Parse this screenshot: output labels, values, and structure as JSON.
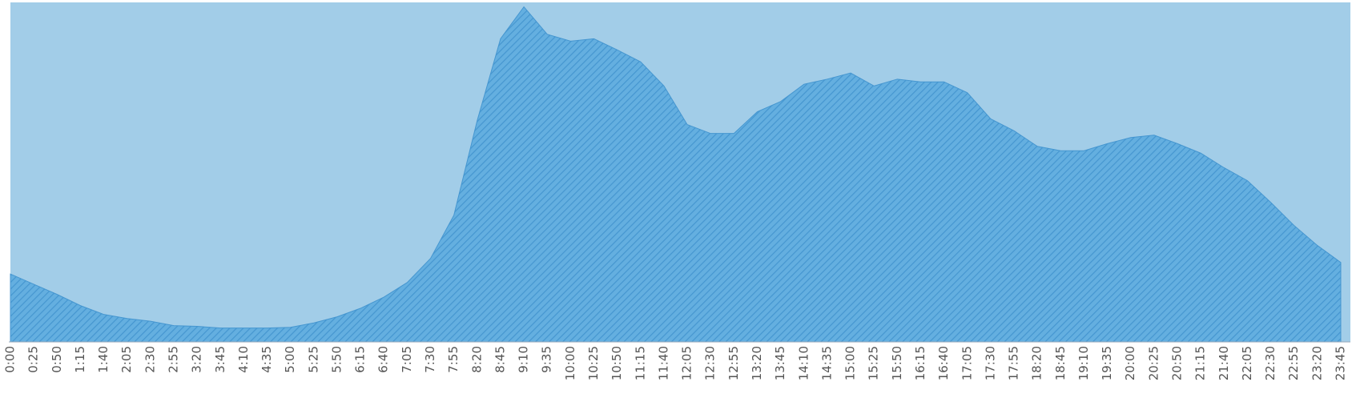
{
  "chart_data": {
    "type": "area",
    "categories": [
      "0:00",
      "0:25",
      "0:50",
      "1:15",
      "1:40",
      "2:05",
      "2:30",
      "2:55",
      "3:20",
      "3:45",
      "4:10",
      "4:35",
      "5:00",
      "5:25",
      "5:50",
      "6:15",
      "6:40",
      "7:05",
      "7:30",
      "7:55",
      "8:20",
      "8:45",
      "9:10",
      "9:35",
      "10:00",
      "10:25",
      "10:50",
      "11:15",
      "11:40",
      "12:05",
      "12:30",
      "12:55",
      "13:20",
      "13:45",
      "14:10",
      "14:35",
      "15:00",
      "15:25",
      "15:50",
      "16:15",
      "16:40",
      "17:05",
      "17:30",
      "17:55",
      "18:20",
      "18:45",
      "19:10",
      "19:35",
      "20:00",
      "20:25",
      "20:50",
      "21:15",
      "21:40",
      "22:05",
      "22:30",
      "22:55",
      "23:20",
      "23:45"
    ],
    "values": [
      20,
      17,
      14,
      10.7,
      8.1,
      6.9,
      6.1,
      4.8,
      4.6,
      4.1,
      4.1,
      4.1,
      4.3,
      5.6,
      7.4,
      9.9,
      13.2,
      17.5,
      24.6,
      37.3,
      65.2,
      89.3,
      98.7,
      90.6,
      88.6,
      89.3,
      86,
      82.5,
      75.4,
      64,
      61.4,
      61.4,
      67.8,
      70.8,
      75.9,
      77.4,
      79.2,
      75.4,
      77.4,
      76.6,
      76.6,
      73.4,
      65.7,
      62.2,
      57.6,
      56.3,
      56.3,
      58.4,
      60.2,
      60.9,
      58.4,
      55.6,
      51.3,
      47.5,
      41.1,
      34.3,
      28.4,
      23.4
    ],
    "color": "#64afe0",
    "hatch_color": "#4596d0",
    "background": "#a2cde8",
    "ylim": [
      0,
      100
    ]
  }
}
